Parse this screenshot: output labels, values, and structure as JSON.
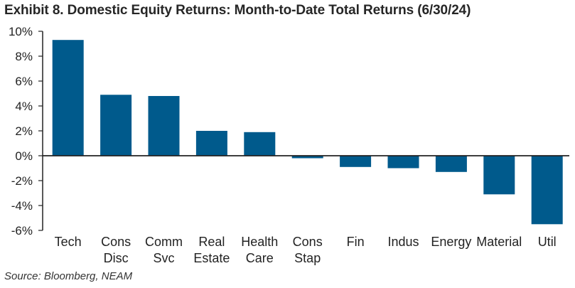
{
  "header": {
    "title": "Exhibit 8. Domestic Equity Returns: Month-to-Date Total Returns (6/30/24)"
  },
  "footer": {
    "source": "Source: Bloomberg, NEAM"
  },
  "colors": {
    "bar": "#005a8c",
    "axis": "#222222",
    "text": "#222222"
  },
  "chart_data": {
    "type": "bar",
    "title": "Exhibit 8. Domestic Equity Returns: Month-to-Date Total Returns (6/30/24)",
    "xlabel": "",
    "ylabel": "",
    "ylim": [
      -6,
      10
    ],
    "yticks": [
      10,
      8,
      6,
      4,
      2,
      0,
      -2,
      -4,
      -6
    ],
    "ytick_labels": [
      "10%",
      "8%",
      "6%",
      "4%",
      "2%",
      "0%",
      "-2%",
      "-4%",
      "-6%"
    ],
    "grid": false,
    "categories": [
      [
        "Tech"
      ],
      [
        "Cons",
        "Disc"
      ],
      [
        "Comm",
        "Svc"
      ],
      [
        "Real",
        "Estate"
      ],
      [
        "Health",
        "Care"
      ],
      [
        "Cons",
        "Stap"
      ],
      [
        "Fin"
      ],
      [
        "Indus"
      ],
      [
        "Energy"
      ],
      [
        "Material"
      ],
      [
        "Util"
      ]
    ],
    "values": [
      9.3,
      4.9,
      4.8,
      2.0,
      1.9,
      -0.2,
      -0.9,
      -1.0,
      -1.3,
      -3.1,
      -5.5
    ]
  }
}
